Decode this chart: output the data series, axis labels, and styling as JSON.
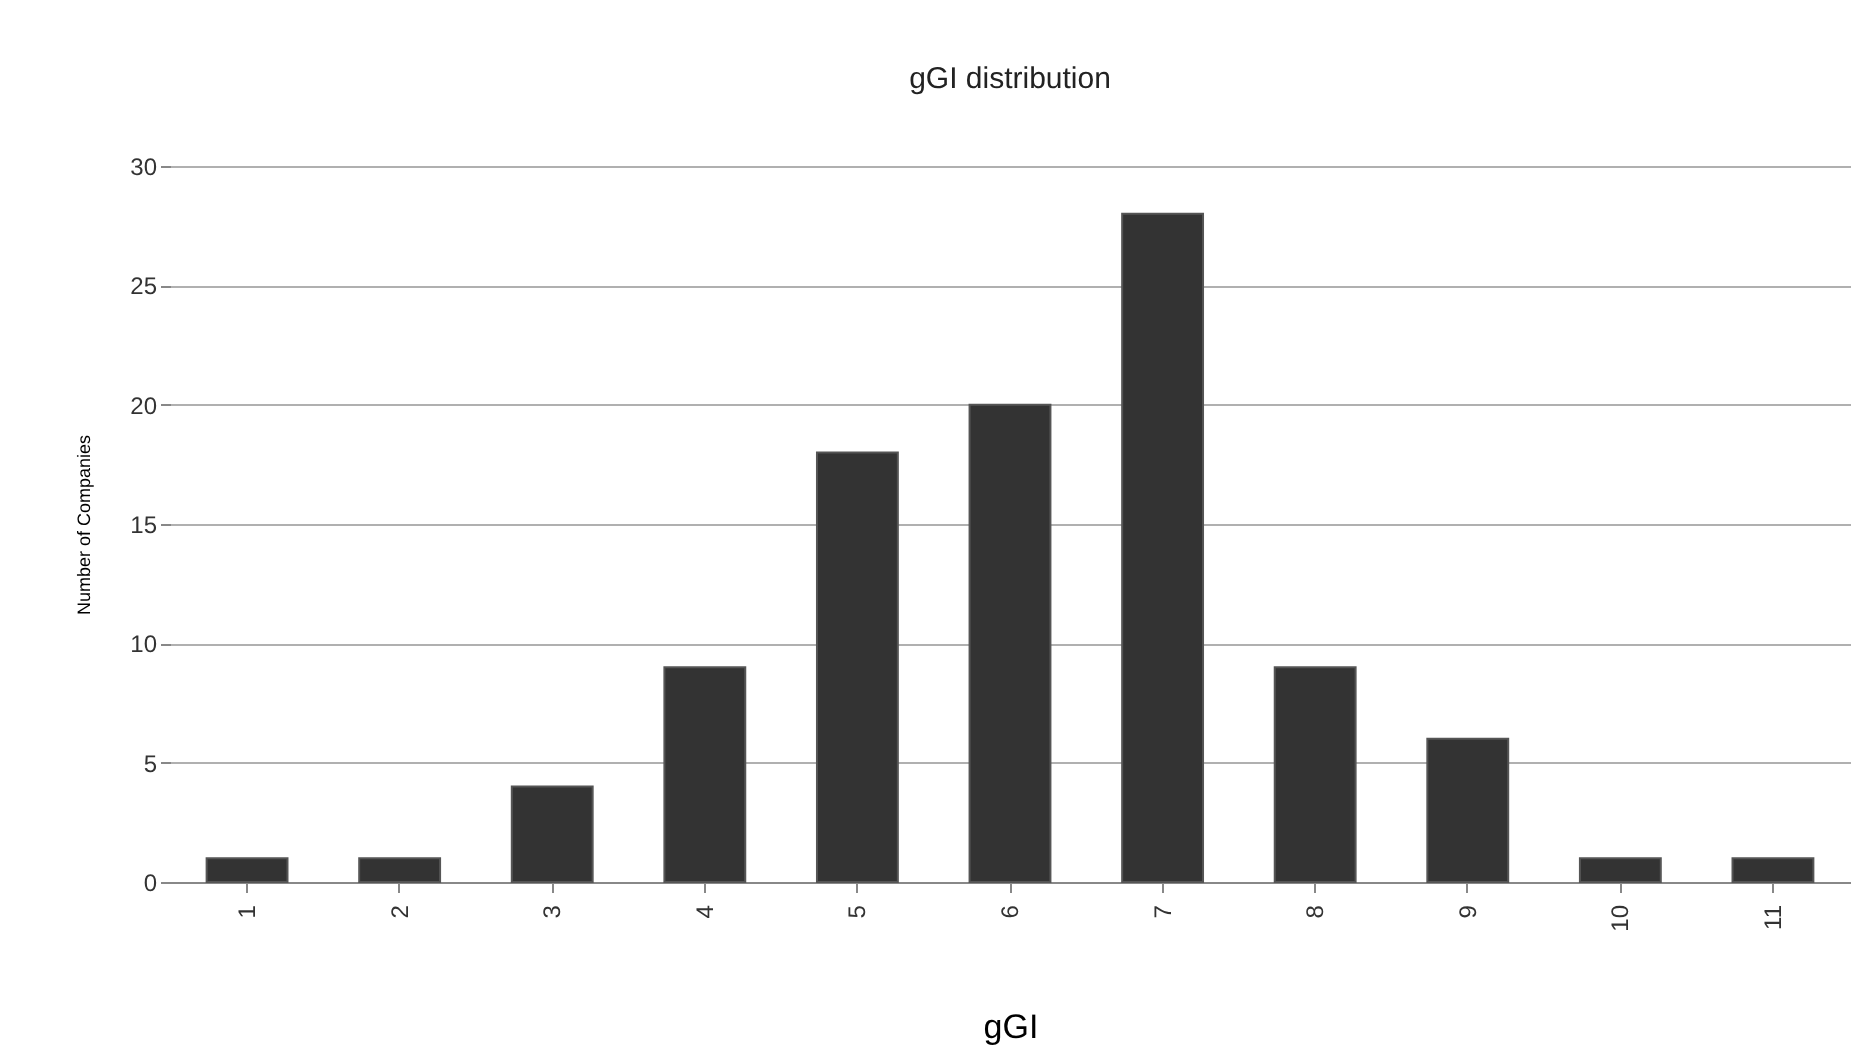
{
  "chart_data": {
    "type": "bar",
    "title": "gGI  distribution",
    "xlabel": "gGI",
    "ylabel": "Number of Companies",
    "categories": [
      "1",
      "2",
      "3",
      "4",
      "5",
      "6",
      "7",
      "8",
      "9",
      "10",
      "11"
    ],
    "values": [
      1,
      1,
      4,
      9,
      18,
      20,
      28,
      9,
      6,
      1,
      1
    ],
    "color": "#333333",
    "ylim": [
      0,
      30
    ],
    "yticks": [
      0,
      5,
      10,
      15,
      20,
      25,
      30
    ],
    "grid": "y"
  }
}
